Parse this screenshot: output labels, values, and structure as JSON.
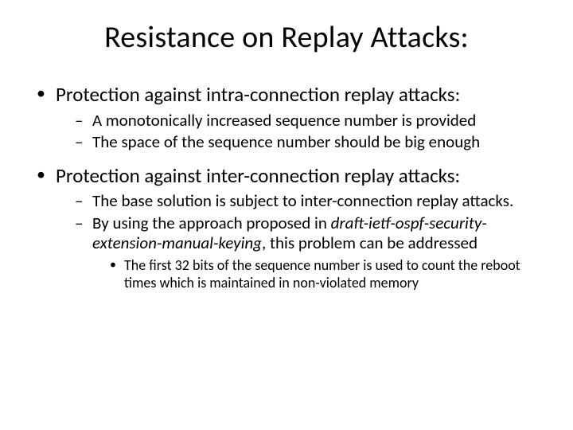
{
  "title": "Resistance on Replay Attacks:",
  "b1": {
    "text": "Protection against intra-connection replay attacks:",
    "s1": "A monotonically increased sequence number is provided",
    "s2": "The space of the sequence number should be big enough"
  },
  "b2": {
    "text": "Protection against inter-connection replay attacks:",
    "s1": "The base solution is subject to inter-connection replay attacks.",
    "s2a": "By using the approach proposed in ",
    "s2b": "draft-ietf-ospf-security-extension-manual-keying",
    "s2c": ", this problem can be addressed",
    "s2_sub1": "The first 32 bits of the sequence number is used to count the reboot times which is maintained in non-violated memory"
  }
}
